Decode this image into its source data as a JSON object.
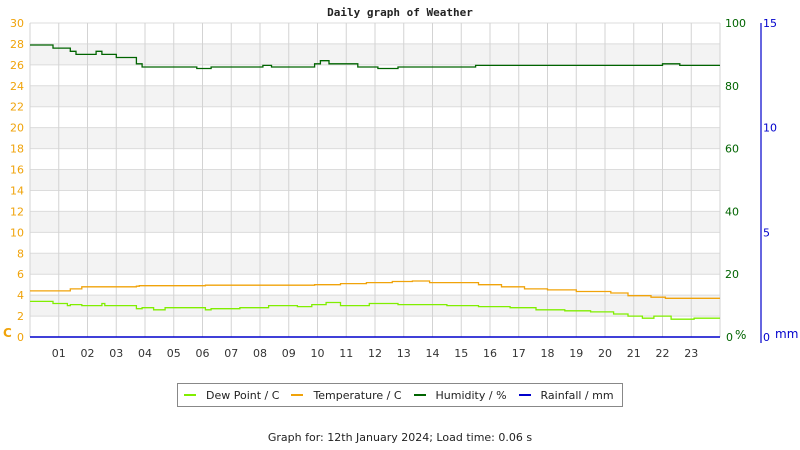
{
  "chart_data": {
    "type": "line",
    "title": "Daily graph of Weather",
    "xlabel": "",
    "x_ticks": [
      "01",
      "02",
      "03",
      "04",
      "05",
      "06",
      "07",
      "08",
      "09",
      "10",
      "11",
      "12",
      "13",
      "14",
      "15",
      "16",
      "17",
      "18",
      "19",
      "20",
      "21",
      "22",
      "23"
    ],
    "xlim": [
      0,
      24
    ],
    "left_axis": {
      "label": "C",
      "ticks": [
        0,
        2,
        4,
        6,
        8,
        10,
        12,
        14,
        16,
        18,
        20,
        22,
        24,
        26,
        28,
        30
      ],
      "ylim": [
        0,
        30
      ]
    },
    "right_axis": {
      "label": "%",
      "ticks": [
        0,
        20,
        40,
        60,
        80,
        100
      ],
      "ylim": [
        0,
        100
      ]
    },
    "right_axis_2": {
      "label": "mm",
      "ticks": [
        0,
        5,
        10,
        15
      ],
      "ylim": [
        0,
        15
      ]
    },
    "grid": true,
    "legend_position": "bottom",
    "series": [
      {
        "name": "Dew Point / C",
        "color": "#80ee00",
        "axis": "left",
        "x": [
          0,
          0.8,
          0.8,
          1.3,
          1.3,
          1.4,
          1.4,
          1.8,
          1.8,
          2.5,
          2.5,
          2.6,
          2.6,
          3.7,
          3.7,
          3.9,
          3.9,
          4.3,
          4.3,
          4.7,
          4.7,
          6.1,
          6.1,
          6.3,
          6.3,
          7.3,
          7.3,
          7.8,
          7.8,
          8.3,
          8.3,
          9.3,
          9.3,
          9.8,
          9.8,
          10.3,
          10.3,
          10.8,
          10.8,
          11.4,
          11.4,
          11.8,
          11.8,
          12.8,
          12.8,
          13.6,
          13.6,
          14.5,
          14.5,
          15.6,
          15.6,
          16.7,
          16.7,
          17.6,
          17.6,
          18.6,
          18.6,
          19.5,
          19.5,
          20.3,
          20.3,
          20.8,
          20.8,
          21.3,
          21.3,
          21.7,
          21.7,
          22.3,
          22.3,
          23.1,
          23.1,
          24
        ],
        "y": [
          3.4,
          3.4,
          3.2,
          3.2,
          3.0,
          3.0,
          3.1,
          3.1,
          3.0,
          3.0,
          3.2,
          3.2,
          3.0,
          3.0,
          2.7,
          2.7,
          2.8,
          2.8,
          2.6,
          2.6,
          2.8,
          2.8,
          2.6,
          2.6,
          2.7,
          2.7,
          2.8,
          2.8,
          2.8,
          2.8,
          3.0,
          3.0,
          2.9,
          2.9,
          3.1,
          3.1,
          3.3,
          3.3,
          3.0,
          3.0,
          3.0,
          3.0,
          3.2,
          3.2,
          3.1,
          3.1,
          3.1,
          3.1,
          3.0,
          3.0,
          2.9,
          2.9,
          2.8,
          2.8,
          2.6,
          2.6,
          2.5,
          2.5,
          2.4,
          2.4,
          2.2,
          2.2,
          2.0,
          2.0,
          1.8,
          1.8,
          2.0,
          2.0,
          1.7,
          1.7,
          1.8,
          1.8
        ]
      },
      {
        "name": "Temperature / C",
        "color": "#f0a30a",
        "axis": "left",
        "x": [
          0,
          1.4,
          1.4,
          1.8,
          1.8,
          3.7,
          3.7,
          3.8,
          3.8,
          6.1,
          6.1,
          7.0,
          7.0,
          9.9,
          9.9,
          10.8,
          10.8,
          11.7,
          11.7,
          12.6,
          12.6,
          13.3,
          13.3,
          13.9,
          13.9,
          15.6,
          15.6,
          16.4,
          16.4,
          17.2,
          17.2,
          18.0,
          18.0,
          19.0,
          19.0,
          20.2,
          20.2,
          20.8,
          20.8,
          21.6,
          21.6,
          22.1,
          22.1,
          24
        ],
        "y": [
          4.4,
          4.4,
          4.6,
          4.6,
          4.8,
          4.8,
          4.85,
          4.85,
          4.9,
          4.9,
          4.95,
          4.95,
          4.95,
          4.95,
          5.0,
          5.0,
          5.1,
          5.1,
          5.2,
          5.2,
          5.3,
          5.3,
          5.35,
          5.35,
          5.2,
          5.2,
          5.0,
          5.0,
          4.8,
          4.8,
          4.6,
          4.6,
          4.5,
          4.5,
          4.35,
          4.35,
          4.2,
          4.2,
          3.95,
          3.95,
          3.8,
          3.8,
          3.7,
          3.7
        ]
      },
      {
        "name": "Humidity / %",
        "color": "#006400",
        "axis": "right",
        "x": [
          0,
          0.8,
          0.8,
          1.4,
          1.4,
          1.6,
          1.6,
          2.3,
          2.3,
          2.5,
          2.5,
          2.6,
          2.6,
          3.0,
          3.0,
          3.7,
          3.7,
          3.9,
          3.9,
          4.3,
          4.3,
          5.8,
          5.8,
          6.3,
          6.3,
          7.3,
          7.3,
          8.1,
          8.1,
          8.4,
          8.4,
          9.3,
          9.3,
          9.9,
          9.9,
          10.1,
          10.1,
          10.4,
          10.4,
          10.8,
          10.8,
          11.4,
          11.4,
          12.1,
          12.1,
          12.8,
          12.8,
          13.9,
          13.9,
          15.1,
          15.1,
          15.5,
          15.5,
          22.0,
          22.0,
          22.6,
          22.6,
          24
        ],
        "y": [
          93,
          93,
          92,
          92,
          91,
          91,
          90,
          90,
          91,
          91,
          90,
          90,
          90,
          90,
          89,
          89,
          87,
          87,
          86,
          86,
          86,
          86,
          85.5,
          85.5,
          86,
          86,
          86,
          86,
          86.5,
          86.5,
          86,
          86,
          86,
          86,
          87,
          87,
          88,
          88,
          87,
          87,
          87,
          87,
          86,
          86,
          85.5,
          85.5,
          86,
          86,
          86,
          86,
          86,
          86,
          86.5,
          86.5,
          87,
          87,
          86.5,
          86.5
        ]
      },
      {
        "name": "Rainfall / mm",
        "color": "#0000cc",
        "axis": "right2",
        "x": [
          0,
          24
        ],
        "y": [
          0,
          0
        ]
      }
    ]
  },
  "legend": {
    "items": [
      {
        "label": "Dew Point / C",
        "color": "#80ee00"
      },
      {
        "label": "Temperature / C",
        "color": "#f0a30a"
      },
      {
        "label": "Humidity / %",
        "color": "#006400"
      },
      {
        "label": "Rainfall / mm",
        "color": "#0000cc"
      }
    ]
  },
  "footer": {
    "text": "Graph for: 12th January 2024; Load time: 0.06 s"
  }
}
